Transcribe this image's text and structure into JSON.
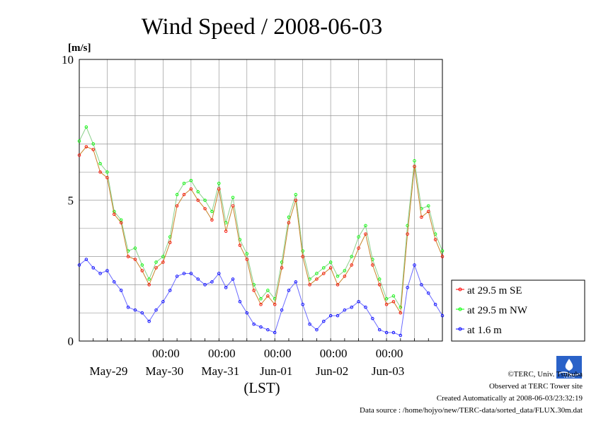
{
  "chart_data": {
    "type": "line",
    "title": "Wind Speed / 2008-06-03",
    "ylabel": "[m/s]",
    "xlabel": "(LST)",
    "ylim": [
      0,
      10
    ],
    "y_ticks": [
      "0",
      "5",
      "10"
    ],
    "x_range_days": [
      "May-28 12:00",
      "Jun-04 00:00"
    ],
    "x_time_ticks": [
      "00:00",
      "00:00",
      "00:00",
      "00:00",
      "00:00"
    ],
    "x_date_ticks": [
      "May-29",
      "May-30",
      "May-31",
      "Jun-01",
      "Jun-02",
      "Jun-03"
    ],
    "grid": true,
    "legend_position": "lower-right outside",
    "series": [
      {
        "name": "at 29.5 m SE",
        "color": "#ff0000",
        "x_hours": [
          0,
          3,
          6,
          9,
          12,
          15,
          18,
          21,
          24,
          27,
          30,
          33,
          36,
          39,
          42,
          45,
          48,
          51,
          54,
          57,
          60,
          63,
          66,
          69,
          72,
          75,
          78,
          81,
          84,
          87,
          90,
          93,
          96,
          99,
          102,
          105,
          108,
          111,
          114,
          117,
          120,
          123,
          126,
          129,
          132,
          135,
          138,
          141,
          144,
          147,
          150,
          153,
          156
        ],
        "values": [
          6.6,
          6.9,
          6.8,
          6.0,
          5.8,
          4.5,
          4.2,
          3.0,
          2.9,
          2.5,
          2.0,
          2.6,
          2.8,
          3.5,
          4.8,
          5.2,
          5.4,
          5.0,
          4.7,
          4.3,
          5.4,
          3.9,
          4.8,
          3.4,
          2.9,
          1.8,
          1.3,
          1.6,
          1.3,
          2.6,
          4.2,
          5.0,
          3.0,
          2.0,
          2.2,
          2.4,
          2.6,
          2.0,
          2.3,
          2.7,
          3.3,
          3.8,
          2.7,
          2.0,
          1.3,
          1.4,
          1.0,
          3.8,
          6.2,
          4.4,
          4.6,
          3.6,
          3.0
        ]
      },
      {
        "name": "at 29.5 m NW",
        "color": "#00ff00",
        "x_hours": [
          0,
          3,
          6,
          9,
          12,
          15,
          18,
          21,
          24,
          27,
          30,
          33,
          36,
          39,
          42,
          45,
          48,
          51,
          54,
          57,
          60,
          63,
          66,
          69,
          72,
          75,
          78,
          81,
          84,
          87,
          90,
          93,
          96,
          99,
          102,
          105,
          108,
          111,
          114,
          117,
          120,
          123,
          126,
          129,
          132,
          135,
          138,
          141,
          144,
          147,
          150,
          153,
          156
        ],
        "values": [
          7.1,
          7.6,
          7.0,
          6.3,
          6.0,
          4.6,
          4.3,
          3.2,
          3.3,
          2.7,
          2.2,
          2.8,
          3.0,
          3.7,
          5.2,
          5.6,
          5.7,
          5.3,
          5.0,
          4.6,
          5.6,
          4.2,
          5.1,
          3.6,
          3.1,
          2.0,
          1.5,
          1.8,
          1.5,
          2.8,
          4.4,
          5.2,
          3.2,
          2.2,
          2.4,
          2.6,
          2.8,
          2.3,
          2.5,
          3.0,
          3.7,
          4.1,
          2.9,
          2.2,
          1.5,
          1.6,
          1.2,
          4.1,
          6.4,
          4.7,
          4.8,
          3.8,
          3.2
        ]
      },
      {
        "name": "at 1.6 m",
        "color": "#0000ff",
        "x_hours": [
          0,
          3,
          6,
          9,
          12,
          15,
          18,
          21,
          24,
          27,
          30,
          33,
          36,
          39,
          42,
          45,
          48,
          51,
          54,
          57,
          60,
          63,
          66,
          69,
          72,
          75,
          78,
          81,
          84,
          87,
          90,
          93,
          96,
          99,
          102,
          105,
          108,
          111,
          114,
          117,
          120,
          123,
          126,
          129,
          132,
          135,
          138,
          141,
          144,
          147,
          150,
          153,
          156
        ],
        "values": [
          2.7,
          2.9,
          2.6,
          2.4,
          2.5,
          2.1,
          1.8,
          1.2,
          1.1,
          1.0,
          0.7,
          1.1,
          1.4,
          1.8,
          2.3,
          2.4,
          2.4,
          2.2,
          2.0,
          2.1,
          2.4,
          1.9,
          2.2,
          1.4,
          1.0,
          0.6,
          0.5,
          0.4,
          0.3,
          1.1,
          1.8,
          2.1,
          1.3,
          0.6,
          0.4,
          0.7,
          0.9,
          0.9,
          1.1,
          1.2,
          1.4,
          1.2,
          0.8,
          0.4,
          0.3,
          0.3,
          0.2,
          1.9,
          2.7,
          2.0,
          1.7,
          1.3,
          0.9
        ]
      }
    ]
  },
  "footer": {
    "copyright": "©TERC, Univ. Tsukuba",
    "observed": "Observed at TERC Tower site",
    "created": "Created Automatically at 2008-06-03/23:32:19",
    "source": "Data source : /home/hojyo/new/TERC-data/sorted_data/FLUX.30m.dat",
    "logo_text": "TERC"
  }
}
